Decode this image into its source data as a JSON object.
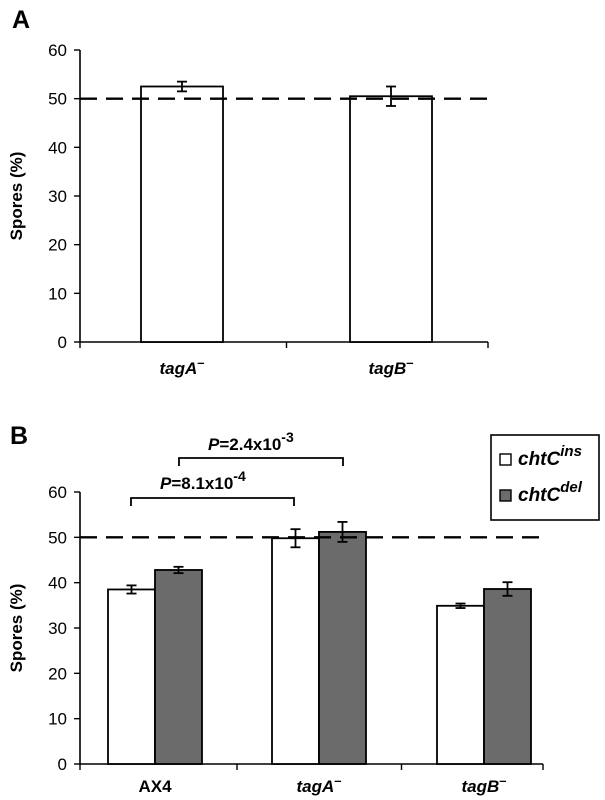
{
  "chart_data": [
    {
      "panel_label": "A",
      "type": "bar",
      "ylabel": "Spores (%)",
      "ylim": [
        0,
        60
      ],
      "yticks": [
        0,
        10,
        20,
        30,
        40,
        50,
        60
      ],
      "reference_line": 50,
      "categories": [
        {
          "name": "tagA",
          "sup": "–",
          "italic": true
        },
        {
          "name": "tagB",
          "sup": "–",
          "italic": true
        }
      ],
      "series": [
        {
          "color": "#ffffff",
          "values": [
            52.5,
            50.5
          ],
          "errors": [
            1.0,
            2.0
          ]
        }
      ],
      "grid": false
    },
    {
      "panel_label": "B",
      "type": "bar",
      "ylabel": "Spores (%)",
      "ylim": [
        0,
        60
      ],
      "yticks": [
        0,
        10,
        20,
        30,
        40,
        50,
        60
      ],
      "reference_line": 50,
      "categories": [
        {
          "name": "AX4",
          "sup": "",
          "italic": false
        },
        {
          "name": "tagA",
          "sup": "–",
          "italic": true
        },
        {
          "name": "tagB",
          "sup": "–",
          "italic": true
        }
      ],
      "series": [
        {
          "name": "chtC",
          "sup": "ins",
          "color": "#ffffff",
          "values": [
            38.5,
            49.8,
            34.9
          ],
          "errors": [
            0.9,
            2.0,
            0.5
          ]
        },
        {
          "name": "chtC",
          "sup": "del",
          "color": "#6b6b6b",
          "values": [
            42.8,
            51.2,
            38.6
          ],
          "errors": [
            0.7,
            2.2,
            1.5
          ]
        }
      ],
      "annotations": [
        {
          "p": "P",
          "text": "=8.1x10",
          "exp": "-4"
        },
        {
          "p": "P",
          "text": "=2.4x10",
          "exp": "-3"
        }
      ],
      "legend_position": "top-right",
      "grid": false
    }
  ]
}
